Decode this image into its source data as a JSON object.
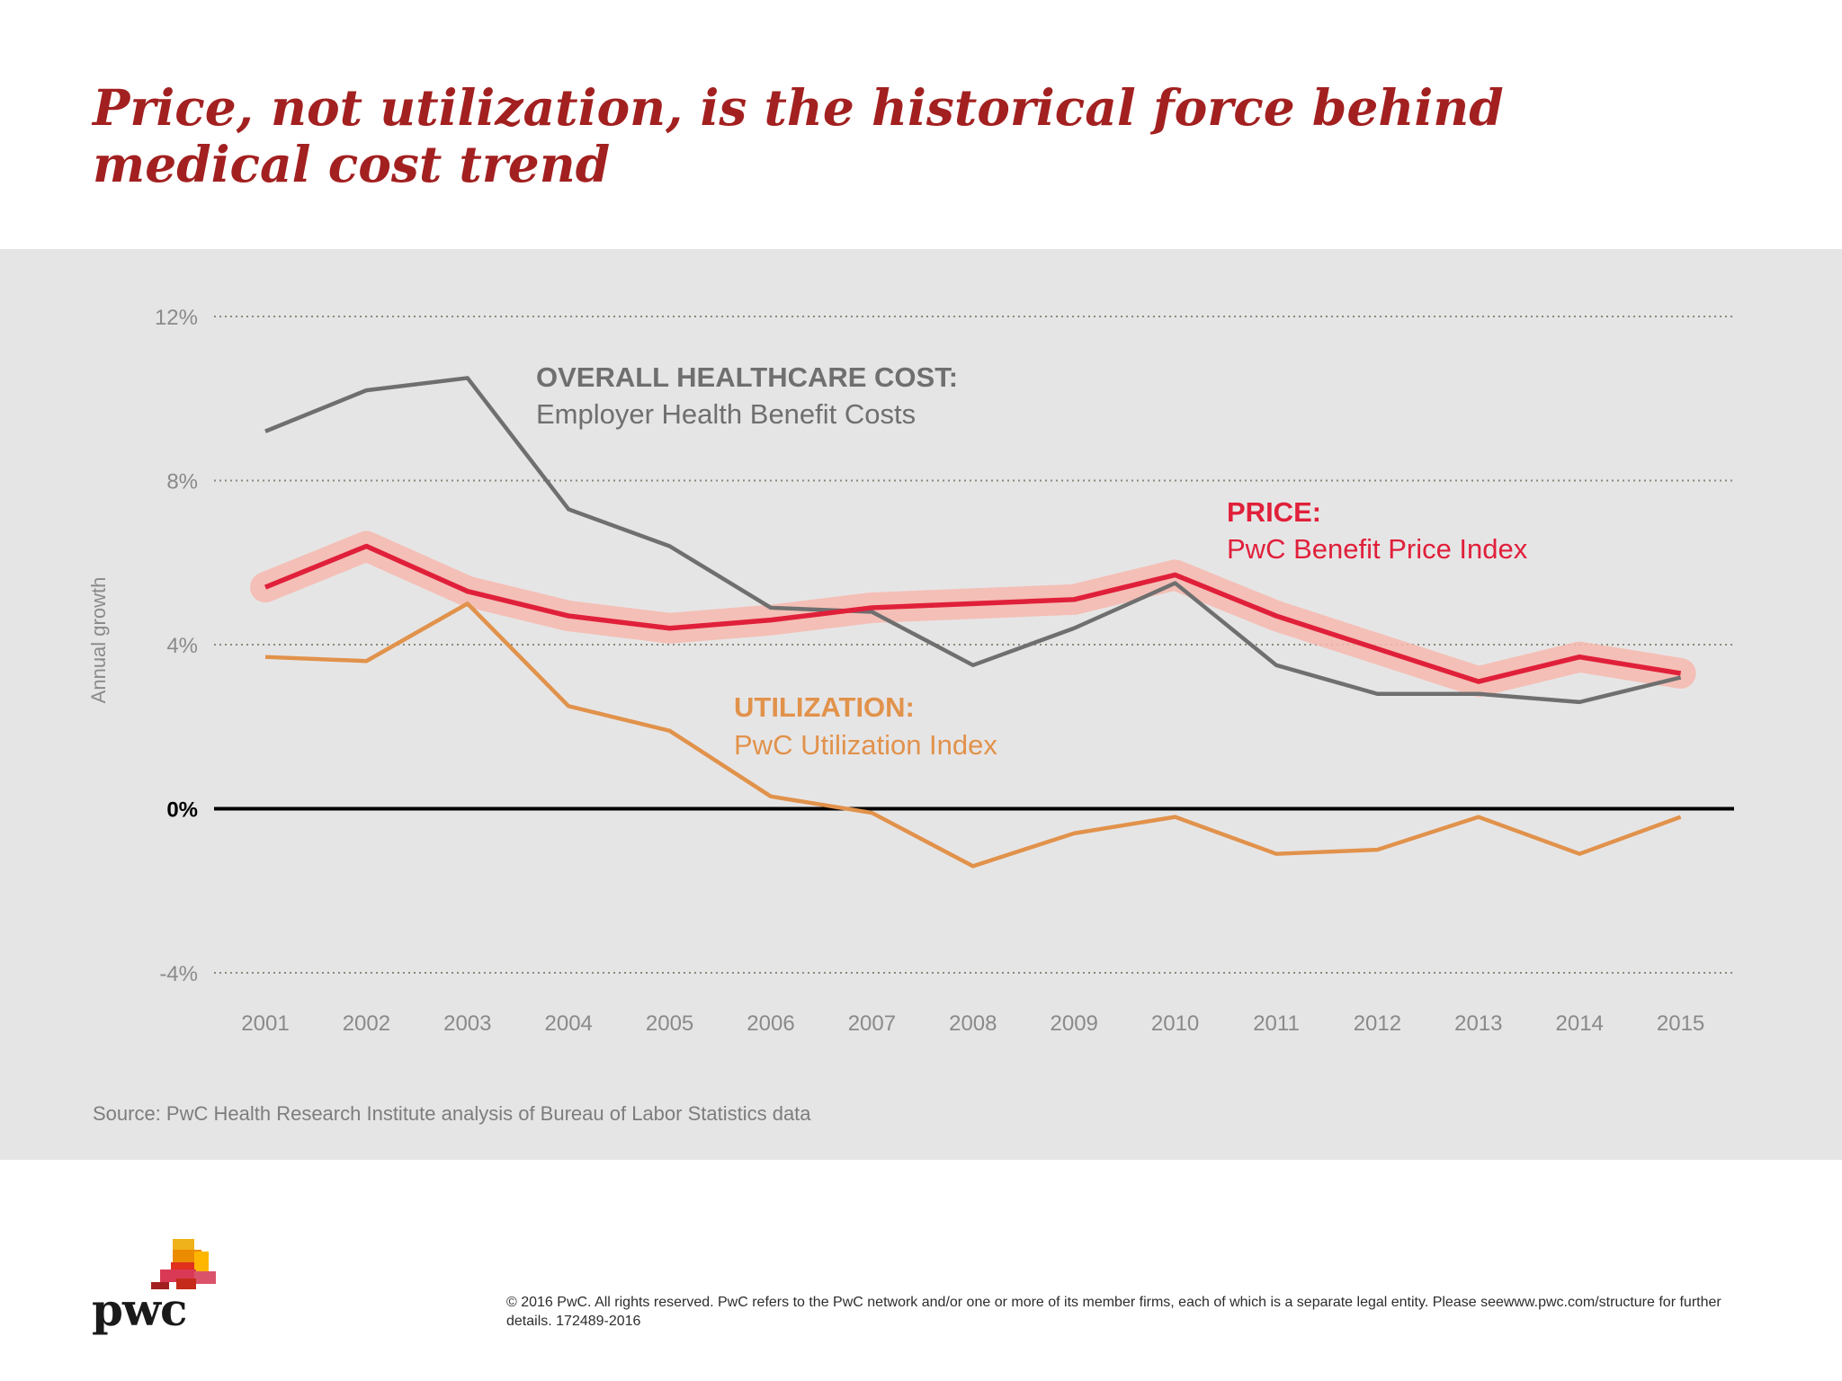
{
  "title": "Price, not utilization, is the historical force behind medical cost trend",
  "source_note": "Source: PwC Health Research Institute analysis of Bureau of Labor Statistics data",
  "footer_text": "© 2016 PwC. All rights reserved. PwC refers to the PwC network and/or one or more of its member firms, each of which is a separate legal entity. Please seewww.pwc.com/structure for further details. 172489-2016",
  "logo": {
    "text": "pwc"
  },
  "colors": {
    "title": "#a32020",
    "overall": "#6f6f6f",
    "price": "#e0203a",
    "price_halo": "#f6b8ad",
    "utilization": "#e1924b",
    "panel": "#e6e5e6"
  },
  "chart_data": {
    "type": "line",
    "title": "",
    "xlabel": "",
    "ylabel": "Annual growth",
    "ylim": [
      -4,
      12
    ],
    "yticks": [
      12,
      8,
      4,
      0,
      -4
    ],
    "ytick_labels": [
      "12%",
      "8%",
      "4%",
      "0%",
      "-4%"
    ],
    "x": [
      2001,
      2002,
      2003,
      2004,
      2005,
      2006,
      2007,
      2008,
      2009,
      2010,
      2011,
      2012,
      2013,
      2014,
      2015
    ],
    "series": [
      {
        "key": "overall",
        "name": "OVERALL HEALTHCARE COST:",
        "subtitle": "Employer Health Benefit Costs",
        "values": [
          9.2,
          10.2,
          10.5,
          7.3,
          6.4,
          4.9,
          4.8,
          3.5,
          4.4,
          5.5,
          3.5,
          2.8,
          2.8,
          2.6,
          3.2
        ]
      },
      {
        "key": "price",
        "name": "PRICE:",
        "subtitle": "PwC Benefit Price Index",
        "values": [
          5.4,
          6.4,
          5.3,
          4.7,
          4.4,
          4.6,
          4.9,
          5.0,
          5.1,
          5.7,
          4.7,
          3.9,
          3.1,
          3.7,
          3.3
        ]
      },
      {
        "key": "utilization",
        "name": "UTILIZATION:",
        "subtitle": "PwC Utilization Index",
        "values": [
          3.7,
          3.6,
          5.0,
          2.5,
          1.9,
          0.3,
          -0.1,
          -1.4,
          -0.6,
          -0.2,
          -1.1,
          -1.0,
          -0.2,
          -1.1,
          -0.2
        ]
      }
    ],
    "annotations": {
      "overall": {
        "label": "OVERALL HEALTHCARE COST:",
        "sublabel": "Employer Health Benefit Costs"
      },
      "price": {
        "label": "PRICE:",
        "sublabel": "PwC Benefit Price Index"
      },
      "utilization": {
        "label": "UTILIZATION:",
        "sublabel": "PwC Utilization Index"
      }
    },
    "grid": true,
    "legend": "inline-labels"
  }
}
